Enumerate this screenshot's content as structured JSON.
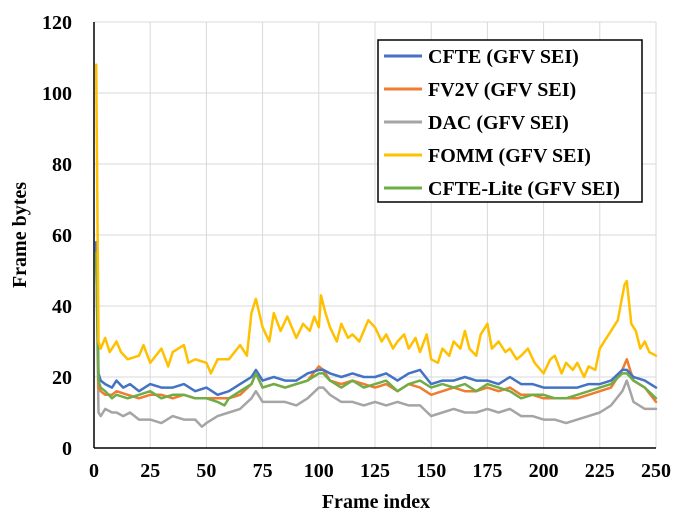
{
  "chart_data": {
    "type": "line",
    "title": "",
    "xlabel": "Frame index",
    "ylabel": "Frame bytes",
    "xlim": [
      0,
      250
    ],
    "ylim": [
      0,
      120
    ],
    "x_ticks": [
      0,
      25,
      50,
      75,
      100,
      125,
      150,
      175,
      200,
      225,
      250
    ],
    "y_ticks": [
      0,
      20,
      40,
      60,
      80,
      100,
      120
    ],
    "grid": true,
    "legend_position": "top-right",
    "series": [
      {
        "name": "CFTE (GFV SEI)",
        "color": "#4472C4",
        "points": [
          [
            1,
            58
          ],
          [
            2,
            21
          ],
          [
            3,
            19
          ],
          [
            5,
            18
          ],
          [
            8,
            17
          ],
          [
            10,
            19
          ],
          [
            13,
            17
          ],
          [
            16,
            18
          ],
          [
            20,
            16
          ],
          [
            25,
            18
          ],
          [
            30,
            17
          ],
          [
            35,
            17
          ],
          [
            40,
            18
          ],
          [
            45,
            16
          ],
          [
            50,
            17
          ],
          [
            55,
            15
          ],
          [
            60,
            16
          ],
          [
            65,
            18
          ],
          [
            70,
            20
          ],
          [
            72,
            22
          ],
          [
            75,
            19
          ],
          [
            80,
            20
          ],
          [
            85,
            19
          ],
          [
            90,
            19
          ],
          [
            95,
            21
          ],
          [
            100,
            22
          ],
          [
            102,
            22
          ],
          [
            105,
            21
          ],
          [
            110,
            20
          ],
          [
            115,
            21
          ],
          [
            120,
            20
          ],
          [
            125,
            20
          ],
          [
            130,
            21
          ],
          [
            135,
            19
          ],
          [
            140,
            21
          ],
          [
            145,
            22
          ],
          [
            150,
            18
          ],
          [
            155,
            19
          ],
          [
            160,
            19
          ],
          [
            165,
            20
          ],
          [
            170,
            19
          ],
          [
            175,
            19
          ],
          [
            180,
            18
          ],
          [
            185,
            20
          ],
          [
            190,
            18
          ],
          [
            195,
            18
          ],
          [
            200,
            17
          ],
          [
            205,
            17
          ],
          [
            210,
            17
          ],
          [
            215,
            17
          ],
          [
            220,
            18
          ],
          [
            225,
            18
          ],
          [
            230,
            19
          ],
          [
            235,
            22
          ],
          [
            237,
            22
          ],
          [
            240,
            20
          ],
          [
            245,
            19
          ],
          [
            250,
            17
          ]
        ]
      },
      {
        "name": "FV2V (GFV SEI)",
        "color": "#ED7D31",
        "points": [
          [
            1,
            55
          ],
          [
            2,
            17
          ],
          [
            3,
            16
          ],
          [
            5,
            15
          ],
          [
            8,
            15
          ],
          [
            10,
            16
          ],
          [
            15,
            15
          ],
          [
            20,
            14
          ],
          [
            25,
            15
          ],
          [
            30,
            15
          ],
          [
            35,
            14
          ],
          [
            40,
            15
          ],
          [
            45,
            14
          ],
          [
            50,
            14
          ],
          [
            55,
            14
          ],
          [
            60,
            14
          ],
          [
            65,
            15
          ],
          [
            70,
            18
          ],
          [
            72,
            21
          ],
          [
            75,
            17
          ],
          [
            80,
            18
          ],
          [
            85,
            17
          ],
          [
            90,
            18
          ],
          [
            95,
            19
          ],
          [
            100,
            23
          ],
          [
            102,
            22
          ],
          [
            105,
            19
          ],
          [
            110,
            18
          ],
          [
            115,
            19
          ],
          [
            120,
            18
          ],
          [
            125,
            17
          ],
          [
            130,
            18
          ],
          [
            135,
            16
          ],
          [
            140,
            18
          ],
          [
            145,
            17
          ],
          [
            150,
            15
          ],
          [
            155,
            16
          ],
          [
            160,
            17
          ],
          [
            165,
            16
          ],
          [
            170,
            16
          ],
          [
            175,
            17
          ],
          [
            180,
            16
          ],
          [
            185,
            17
          ],
          [
            190,
            15
          ],
          [
            195,
            15
          ],
          [
            200,
            14
          ],
          [
            205,
            14
          ],
          [
            210,
            14
          ],
          [
            215,
            14
          ],
          [
            220,
            15
          ],
          [
            225,
            16
          ],
          [
            230,
            17
          ],
          [
            235,
            22
          ],
          [
            237,
            25
          ],
          [
            240,
            19
          ],
          [
            245,
            17
          ],
          [
            250,
            13
          ]
        ]
      },
      {
        "name": "DAC (GFV SEI)",
        "color": "#A5A5A5",
        "points": [
          [
            1,
            56
          ],
          [
            2,
            10
          ],
          [
            3,
            9
          ],
          [
            5,
            11
          ],
          [
            8,
            10
          ],
          [
            10,
            10
          ],
          [
            13,
            9
          ],
          [
            16,
            10
          ],
          [
            20,
            8
          ],
          [
            25,
            8
          ],
          [
            30,
            7
          ],
          [
            35,
            9
          ],
          [
            40,
            8
          ],
          [
            45,
            8
          ],
          [
            48,
            6
          ],
          [
            50,
            7
          ],
          [
            55,
            9
          ],
          [
            60,
            10
          ],
          [
            65,
            11
          ],
          [
            70,
            14
          ],
          [
            72,
            16
          ],
          [
            75,
            13
          ],
          [
            80,
            13
          ],
          [
            85,
            13
          ],
          [
            90,
            12
          ],
          [
            95,
            14
          ],
          [
            100,
            17
          ],
          [
            102,
            17
          ],
          [
            105,
            15
          ],
          [
            110,
            13
          ],
          [
            115,
            13
          ],
          [
            120,
            12
          ],
          [
            125,
            13
          ],
          [
            130,
            12
          ],
          [
            135,
            13
          ],
          [
            140,
            12
          ],
          [
            145,
            12
          ],
          [
            150,
            9
          ],
          [
            155,
            10
          ],
          [
            160,
            11
          ],
          [
            165,
            10
          ],
          [
            170,
            10
          ],
          [
            175,
            11
          ],
          [
            180,
            10
          ],
          [
            185,
            11
          ],
          [
            190,
            9
          ],
          [
            195,
            9
          ],
          [
            200,
            8
          ],
          [
            205,
            8
          ],
          [
            210,
            7
          ],
          [
            215,
            8
          ],
          [
            220,
            9
          ],
          [
            225,
            10
          ],
          [
            230,
            12
          ],
          [
            235,
            16
          ],
          [
            237,
            19
          ],
          [
            240,
            13
          ],
          [
            245,
            11
          ],
          [
            250,
            11
          ]
        ]
      },
      {
        "name": "FOMM (GFV SEI)",
        "color": "#FFC000",
        "points": [
          [
            1,
            108
          ],
          [
            2,
            30
          ],
          [
            3,
            28
          ],
          [
            5,
            31
          ],
          [
            7,
            27
          ],
          [
            10,
            30
          ],
          [
            12,
            27
          ],
          [
            15,
            25
          ],
          [
            20,
            26
          ],
          [
            22,
            29
          ],
          [
            25,
            24
          ],
          [
            30,
            28
          ],
          [
            33,
            23
          ],
          [
            35,
            27
          ],
          [
            40,
            29
          ],
          [
            42,
            24
          ],
          [
            45,
            25
          ],
          [
            50,
            24
          ],
          [
            52,
            21
          ],
          [
            55,
            25
          ],
          [
            60,
            25
          ],
          [
            65,
            29
          ],
          [
            68,
            26
          ],
          [
            70,
            38
          ],
          [
            72,
            42
          ],
          [
            75,
            34
          ],
          [
            78,
            30
          ],
          [
            80,
            38
          ],
          [
            83,
            33
          ],
          [
            86,
            37
          ],
          [
            90,
            31
          ],
          [
            93,
            35
          ],
          [
            96,
            33
          ],
          [
            98,
            37
          ],
          [
            100,
            34
          ],
          [
            101,
            43
          ],
          [
            103,
            38
          ],
          [
            105,
            34
          ],
          [
            108,
            30
          ],
          [
            110,
            35
          ],
          [
            113,
            31
          ],
          [
            115,
            32
          ],
          [
            118,
            30
          ],
          [
            120,
            33
          ],
          [
            122,
            36
          ],
          [
            125,
            34
          ],
          [
            128,
            30
          ],
          [
            130,
            32
          ],
          [
            133,
            28
          ],
          [
            135,
            30
          ],
          [
            138,
            32
          ],
          [
            140,
            28
          ],
          [
            143,
            31
          ],
          [
            145,
            27
          ],
          [
            148,
            32
          ],
          [
            150,
            25
          ],
          [
            153,
            24
          ],
          [
            155,
            28
          ],
          [
            158,
            26
          ],
          [
            160,
            30
          ],
          [
            163,
            28
          ],
          [
            165,
            33
          ],
          [
            167,
            28
          ],
          [
            170,
            26
          ],
          [
            172,
            32
          ],
          [
            175,
            35
          ],
          [
            177,
            28
          ],
          [
            180,
            30
          ],
          [
            183,
            27
          ],
          [
            185,
            28
          ],
          [
            188,
            25
          ],
          [
            190,
            26
          ],
          [
            193,
            28
          ],
          [
            196,
            24
          ],
          [
            200,
            21
          ],
          [
            203,
            25
          ],
          [
            205,
            26
          ],
          [
            208,
            21
          ],
          [
            210,
            24
          ],
          [
            213,
            22
          ],
          [
            215,
            24
          ],
          [
            218,
            20
          ],
          [
            220,
            23
          ],
          [
            223,
            22
          ],
          [
            225,
            28
          ],
          [
            228,
            31
          ],
          [
            230,
            33
          ],
          [
            233,
            36
          ],
          [
            236,
            46
          ],
          [
            237,
            47
          ],
          [
            239,
            35
          ],
          [
            241,
            33
          ],
          [
            243,
            28
          ],
          [
            245,
            30
          ],
          [
            247,
            27
          ],
          [
            250,
            26
          ]
        ]
      },
      {
        "name": "CFTE-Lite (GFV SEI)",
        "color": "#70AD47",
        "points": [
          [
            1,
            55
          ],
          [
            2,
            19
          ],
          [
            3,
            17
          ],
          [
            5,
            16
          ],
          [
            8,
            14
          ],
          [
            10,
            15
          ],
          [
            15,
            14
          ],
          [
            20,
            15
          ],
          [
            25,
            16
          ],
          [
            30,
            14
          ],
          [
            35,
            15
          ],
          [
            40,
            15
          ],
          [
            45,
            14
          ],
          [
            50,
            14
          ],
          [
            55,
            13
          ],
          [
            58,
            12
          ],
          [
            60,
            14
          ],
          [
            65,
            16
          ],
          [
            70,
            18
          ],
          [
            72,
            21
          ],
          [
            75,
            17
          ],
          [
            80,
            18
          ],
          [
            85,
            17
          ],
          [
            90,
            18
          ],
          [
            95,
            19
          ],
          [
            100,
            21
          ],
          [
            102,
            21
          ],
          [
            105,
            19
          ],
          [
            110,
            17
          ],
          [
            115,
            19
          ],
          [
            120,
            17
          ],
          [
            125,
            18
          ],
          [
            130,
            19
          ],
          [
            135,
            16
          ],
          [
            140,
            18
          ],
          [
            145,
            19
          ],
          [
            150,
            17
          ],
          [
            155,
            18
          ],
          [
            160,
            17
          ],
          [
            165,
            18
          ],
          [
            170,
            16
          ],
          [
            175,
            18
          ],
          [
            180,
            17
          ],
          [
            185,
            16
          ],
          [
            190,
            14
          ],
          [
            195,
            15
          ],
          [
            200,
            15
          ],
          [
            205,
            14
          ],
          [
            210,
            14
          ],
          [
            215,
            15
          ],
          [
            220,
            16
          ],
          [
            225,
            17
          ],
          [
            230,
            18
          ],
          [
            235,
            21
          ],
          [
            237,
            21
          ],
          [
            240,
            19
          ],
          [
            245,
            17
          ],
          [
            250,
            14
          ]
        ]
      }
    ]
  }
}
